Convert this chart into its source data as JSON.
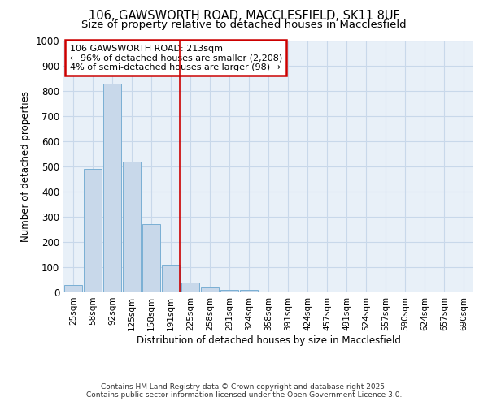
{
  "title_line1": "106, GAWSWORTH ROAD, MACCLESFIELD, SK11 8UF",
  "title_line2": "Size of property relative to detached houses in Macclesfield",
  "xlabel": "Distribution of detached houses by size in Macclesfield",
  "ylabel": "Number of detached properties",
  "bar_color": "#c8d8ea",
  "bar_edge_color": "#7aafd4",
  "background_color": "#e8f0f8",
  "fig_background": "#ffffff",
  "grid_color": "#c8d8ea",
  "categories": [
    "25sqm",
    "58sqm",
    "92sqm",
    "125sqm",
    "158sqm",
    "191sqm",
    "225sqm",
    "258sqm",
    "291sqm",
    "324sqm",
    "358sqm",
    "391sqm",
    "424sqm",
    "457sqm",
    "491sqm",
    "524sqm",
    "557sqm",
    "590sqm",
    "624sqm",
    "657sqm",
    "690sqm"
  ],
  "values": [
    30,
    490,
    830,
    520,
    270,
    110,
    40,
    20,
    10,
    10,
    0,
    0,
    0,
    0,
    0,
    0,
    0,
    0,
    0,
    0,
    0
  ],
  "vline_position": 5.45,
  "vline_color": "#cc0000",
  "annotation_title": "106 GAWSWORTH ROAD: 213sqm",
  "annotation_line2": "← 96% of detached houses are smaller (2,208)",
  "annotation_line3": "4% of semi-detached houses are larger (98) →",
  "annotation_box_edge": "#cc0000",
  "ylim": [
    0,
    1000
  ],
  "yticks": [
    0,
    100,
    200,
    300,
    400,
    500,
    600,
    700,
    800,
    900,
    1000
  ],
  "footer_line1": "Contains HM Land Registry data © Crown copyright and database right 2025.",
  "footer_line2": "Contains public sector information licensed under the Open Government Licence 3.0."
}
